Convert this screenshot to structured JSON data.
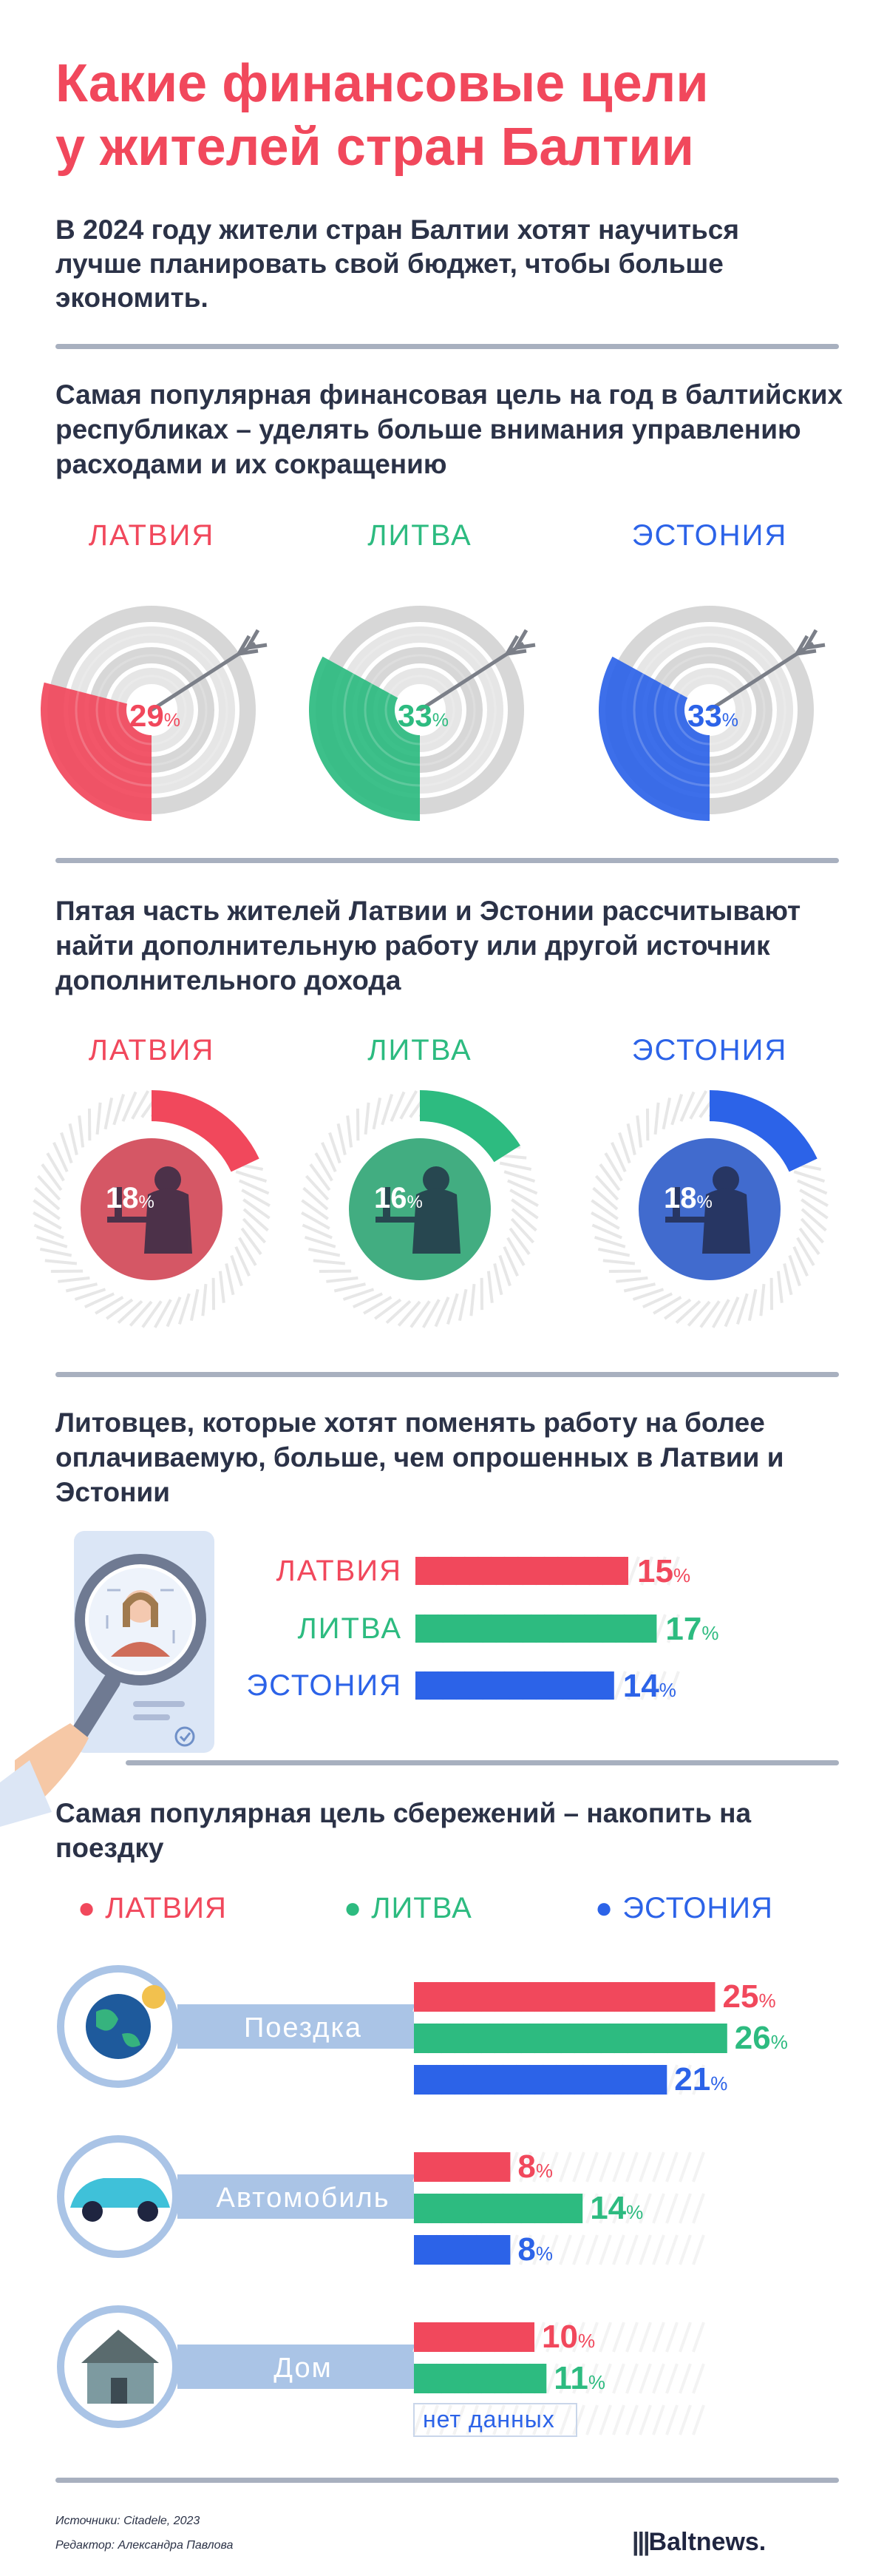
{
  "title_line1": "Какие финансовые цели",
  "title_line2": "у жителей стран Балтии",
  "intro": "В 2024 году жители стран Балтии хотят научиться лучше планировать свой бюджет, чтобы больше экономить.",
  "countries": {
    "lv": "ЛАТВИЯ",
    "lt": "ЛИТВА",
    "ee": "ЭСТОНИЯ"
  },
  "colors": {
    "lv": "#f1485c",
    "lt": "#2dbb80",
    "ee": "#2c63e8",
    "grey": "#d9d9d9"
  },
  "section1": {
    "title": "Самая популярная финансовая цель на год в балтийских республиках – уделять больше внимания управлению расходами и их сокращению"
  },
  "section2": {
    "title": "Пятая часть жителей Латвии и Эстонии рассчитывают найти дополнительную работу или другой источник дополнительного дохода"
  },
  "section3": {
    "title": "Литовцев, которые хотят поменять работу на более оплачиваемую, больше, чем опрошенных в Латвии и Эстонии"
  },
  "section4": {
    "title": "Самая популярная цель сбережений – накопить на поездку",
    "no_data": "нет данных"
  },
  "footer": {
    "sources": "Источники: Citadele, 2023",
    "editor": "Редактор: Александра Павлова",
    "logo": "Baltnews."
  },
  "chart_data": [
    {
      "type": "pie",
      "title": "Самая популярная финансовая цель на год в балтийских республиках – уделять больше внимания управлению расходами и их сокращению",
      "categories": [
        "ЛАТВИЯ",
        "ЛИТВА",
        "ЭСТОНИЯ"
      ],
      "values": [
        29,
        33,
        33
      ],
      "unit": "%"
    },
    {
      "type": "pie",
      "title": "Пятая часть жителей Латвии и Эстонии рассчитывают найти дополнительную работу или другой источник дополнительного дохода",
      "categories": [
        "ЛАТВИЯ",
        "ЛИТВА",
        "ЭСТОНИЯ"
      ],
      "values": [
        18,
        16,
        18
      ],
      "unit": "%"
    },
    {
      "type": "bar",
      "title": "Литовцев, которые хотят поменять работу на более оплачиваемую, больше, чем опрошенных в Латвии и Эстонии",
      "categories": [
        "ЛАТВИЯ",
        "ЛИТВА",
        "ЭСТОНИЯ"
      ],
      "values": [
        15,
        17,
        14
      ],
      "unit": "%"
    },
    {
      "type": "bar",
      "title": "Самая популярная цель сбережений – накопить на поездку",
      "categories": [
        "Поездка",
        "Автомобиль",
        "Дом"
      ],
      "series": [
        {
          "name": "ЛАТВИЯ",
          "values": [
            25,
            8,
            10
          ]
        },
        {
          "name": "ЛИТВА",
          "values": [
            26,
            14,
            11
          ]
        },
        {
          "name": "ЭСТОНИЯ",
          "values": [
            21,
            8,
            null
          ]
        }
      ],
      "unit": "%"
    }
  ]
}
